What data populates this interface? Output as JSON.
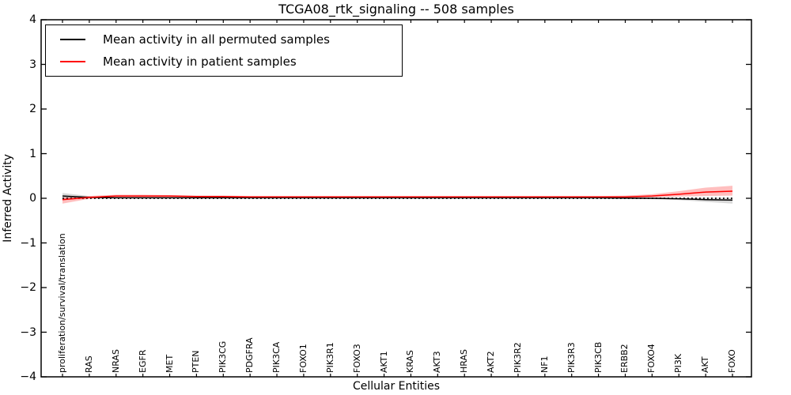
{
  "chart_data": {
    "type": "line",
    "title": "TCGA08_rtk_signaling -- 508 samples",
    "xlabel": "Cellular Entities",
    "ylabel": "Inferred Activity",
    "ylim": [
      -4,
      4
    ],
    "yticks": [
      4,
      3,
      2,
      1,
      0,
      -1,
      -2,
      -3,
      -4
    ],
    "ytick_labels": [
      "4",
      "3",
      "2",
      "1",
      "0",
      "−1",
      "−2",
      "−3",
      "−4"
    ],
    "grid": false,
    "legend_position": "upper left",
    "zero_reference_line": {
      "y": 0,
      "style": "dotted",
      "color": "#000000"
    },
    "categories": [
      "proliferation/survival/translation",
      "RAS",
      "NRAS",
      "EGFR",
      "MET",
      "PTEN",
      "PIK3CG",
      "PDGFRA",
      "PIK3CA",
      "FOXO1",
      "PIK3R1",
      "FOXO3",
      "AKT1",
      "KRAS",
      "AKT3",
      "HRAS",
      "AKT2",
      "PIK3R2",
      "NF1",
      "PIK3R3",
      "PIK3CB",
      "ERBB2",
      "FOXO4",
      "PI3K",
      "AKT",
      "FOXO"
    ],
    "series": [
      {
        "name": "Mean activity in all permuted samples",
        "color": "#000000",
        "band_color": "rgba(0,0,0,0.15)",
        "values": [
          0.05,
          0.02,
          0.01,
          0.01,
          0.01,
          0.01,
          0.01,
          0.01,
          0.01,
          0.01,
          0.01,
          0.01,
          0.01,
          0.01,
          0.01,
          0.01,
          0.01,
          0.01,
          0.01,
          0.01,
          0.01,
          0.005,
          0.0,
          -0.01,
          -0.03,
          -0.04
        ],
        "band_upper": [
          0.12,
          0.05,
          0.03,
          0.02,
          0.02,
          0.02,
          0.02,
          0.02,
          0.02,
          0.02,
          0.02,
          0.02,
          0.02,
          0.02,
          0.02,
          0.02,
          0.02,
          0.02,
          0.02,
          0.02,
          0.02,
          0.02,
          0.015,
          0.01,
          0.01,
          0.01
        ],
        "band_lower": [
          -0.03,
          -0.005,
          0.0,
          0.0,
          0.0,
          0.0,
          0.0,
          0.0,
          0.0,
          0.0,
          0.0,
          0.0,
          0.0,
          0.0,
          0.0,
          0.0,
          0.0,
          0.0,
          0.0,
          0.0,
          -0.005,
          -0.01,
          -0.02,
          -0.04,
          -0.08,
          -0.12
        ]
      },
      {
        "name": "Mean activity in patient samples",
        "color": "#ff0000",
        "band_color": "rgba(255,0,0,0.25)",
        "values": [
          -0.03,
          0.02,
          0.05,
          0.05,
          0.05,
          0.04,
          0.04,
          0.03,
          0.03,
          0.03,
          0.03,
          0.03,
          0.03,
          0.03,
          0.03,
          0.03,
          0.03,
          0.03,
          0.03,
          0.03,
          0.03,
          0.03,
          0.05,
          0.09,
          0.14,
          0.16
        ],
        "band_upper": [
          0.02,
          0.05,
          0.08,
          0.08,
          0.07,
          0.06,
          0.06,
          0.05,
          0.05,
          0.05,
          0.05,
          0.05,
          0.05,
          0.05,
          0.05,
          0.05,
          0.05,
          0.05,
          0.05,
          0.05,
          0.05,
          0.06,
          0.09,
          0.16,
          0.24,
          0.28
        ],
        "band_lower": [
          -0.12,
          -0.01,
          0.02,
          0.02,
          0.02,
          0.02,
          0.02,
          0.01,
          0.01,
          0.01,
          0.01,
          0.01,
          0.01,
          0.01,
          0.01,
          0.01,
          0.01,
          0.01,
          0.01,
          0.01,
          0.01,
          0.01,
          0.02,
          0.04,
          0.05,
          0.06
        ]
      }
    ]
  }
}
